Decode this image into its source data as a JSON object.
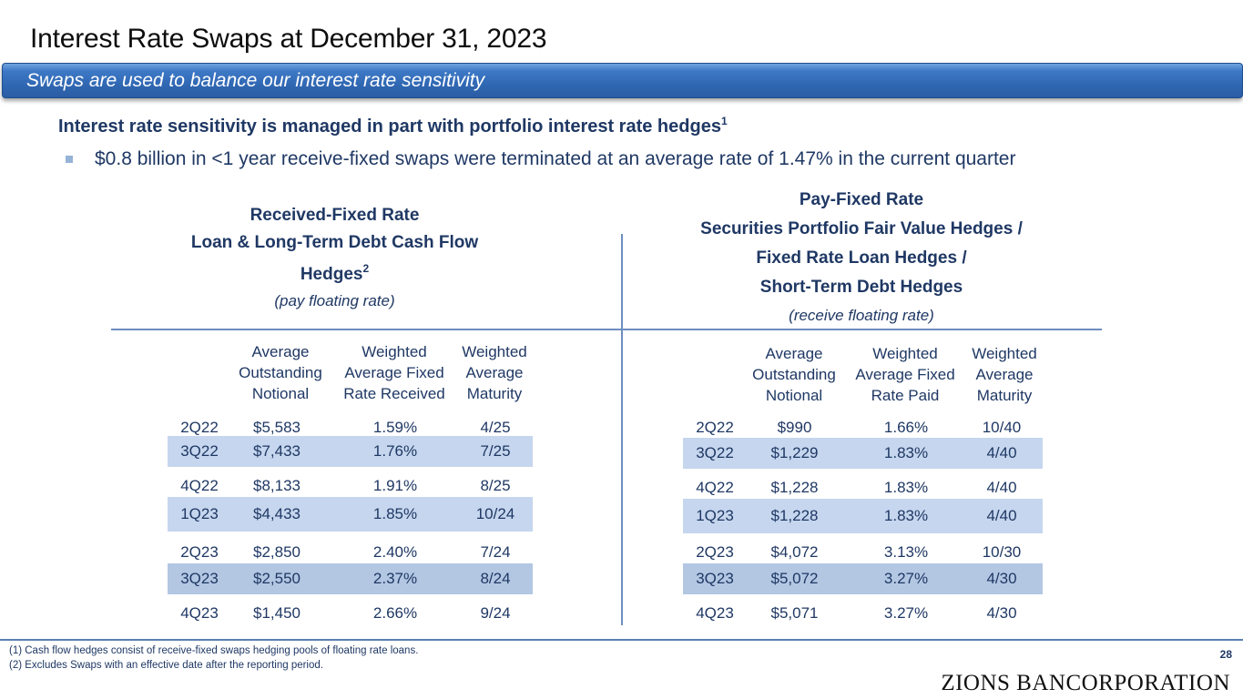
{
  "title": "Interest Rate Swaps at December 31, 2023",
  "banner": "Swaps are used to balance our interest rate sensitivity",
  "headline": "Interest rate sensitivity is managed in part with portfolio interest rate hedges",
  "headline_sup": "1",
  "bullet": "$0.8 billion in <1 year receive-fixed swaps were terminated at an average rate of 1.47% in the current quarter",
  "left_panel": {
    "heading": "Received-Fixed Rate",
    "subheading_line1": "Loan & Long-Term Debt Cash Flow",
    "subheading_line2": "Hedges",
    "subheading_sup": "2",
    "note": "(pay floating rate)",
    "columns": [
      [
        "Average",
        "Outstanding",
        "Notional"
      ],
      [
        "Weighted",
        "Average Fixed",
        "Rate Received"
      ],
      [
        "Weighted",
        "Average",
        "Maturity"
      ]
    ],
    "rows": [
      {
        "quarter": "2Q22",
        "notional": "$5,583",
        "rate": "1.59%",
        "maturity": "4/25"
      },
      {
        "quarter": "3Q22",
        "notional": "$7,433",
        "rate": "1.76%",
        "maturity": "7/25"
      },
      {
        "quarter": "4Q22",
        "notional": "$8,133",
        "rate": "1.91%",
        "maturity": "8/25"
      },
      {
        "quarter": "1Q23",
        "notional": "$4,433",
        "rate": "1.85%",
        "maturity": "10/24"
      },
      {
        "quarter": "2Q23",
        "notional": "$2,850",
        "rate": "2.40%",
        "maturity": "7/24"
      },
      {
        "quarter": "3Q23",
        "notional": "$2,550",
        "rate": "2.37%",
        "maturity": "8/24"
      },
      {
        "quarter": "4Q23",
        "notional": "$1,450",
        "rate": "2.66%",
        "maturity": "9/24"
      }
    ]
  },
  "right_panel": {
    "heading": "Pay-Fixed Rate",
    "subheading_lines": [
      "Securities Portfolio Fair Value Hedges /",
      "Fixed Rate Loan Hedges /",
      "Short-Term Debt Hedges"
    ],
    "note": "(receive floating rate)",
    "columns": [
      [
        "Average",
        "Outstanding",
        "Notional"
      ],
      [
        "Weighted",
        "Average Fixed",
        "Rate Paid"
      ],
      [
        "Weighted",
        "Average",
        "Maturity"
      ]
    ],
    "rows": [
      {
        "quarter": "2Q22",
        "notional": "$990",
        "rate": "1.66%",
        "maturity": "10/40"
      },
      {
        "quarter": "3Q22",
        "notional": "$1,229",
        "rate": "1.83%",
        "maturity": "4/40"
      },
      {
        "quarter": "4Q22",
        "notional": "$1,228",
        "rate": "1.83%",
        "maturity": "4/40"
      },
      {
        "quarter": "1Q23",
        "notional": "$1,228",
        "rate": "1.83%",
        "maturity": "4/40"
      },
      {
        "quarter": "2Q23",
        "notional": "$4,072",
        "rate": "3.13%",
        "maturity": "10/30"
      },
      {
        "quarter": "3Q23",
        "notional": "$5,072",
        "rate": "3.27%",
        "maturity": "4/30"
      },
      {
        "quarter": "4Q23",
        "notional": "$5,071",
        "rate": "3.27%",
        "maturity": "4/30"
      }
    ]
  },
  "footnotes": [
    "(1)  Cash flow hedges consist of receive-fixed swaps hedging pools of floating rate loans.",
    "(2)  Excludes Swaps with an effective date after the reporting period."
  ],
  "page_number": "28",
  "logo": "ZIONS BANCORPORATION",
  "colors": {
    "brand_blue": "#3168b4",
    "text_navy": "#1f3864",
    "band_light": "#c5d6ee",
    "band_dark": "#b3c7e3"
  }
}
